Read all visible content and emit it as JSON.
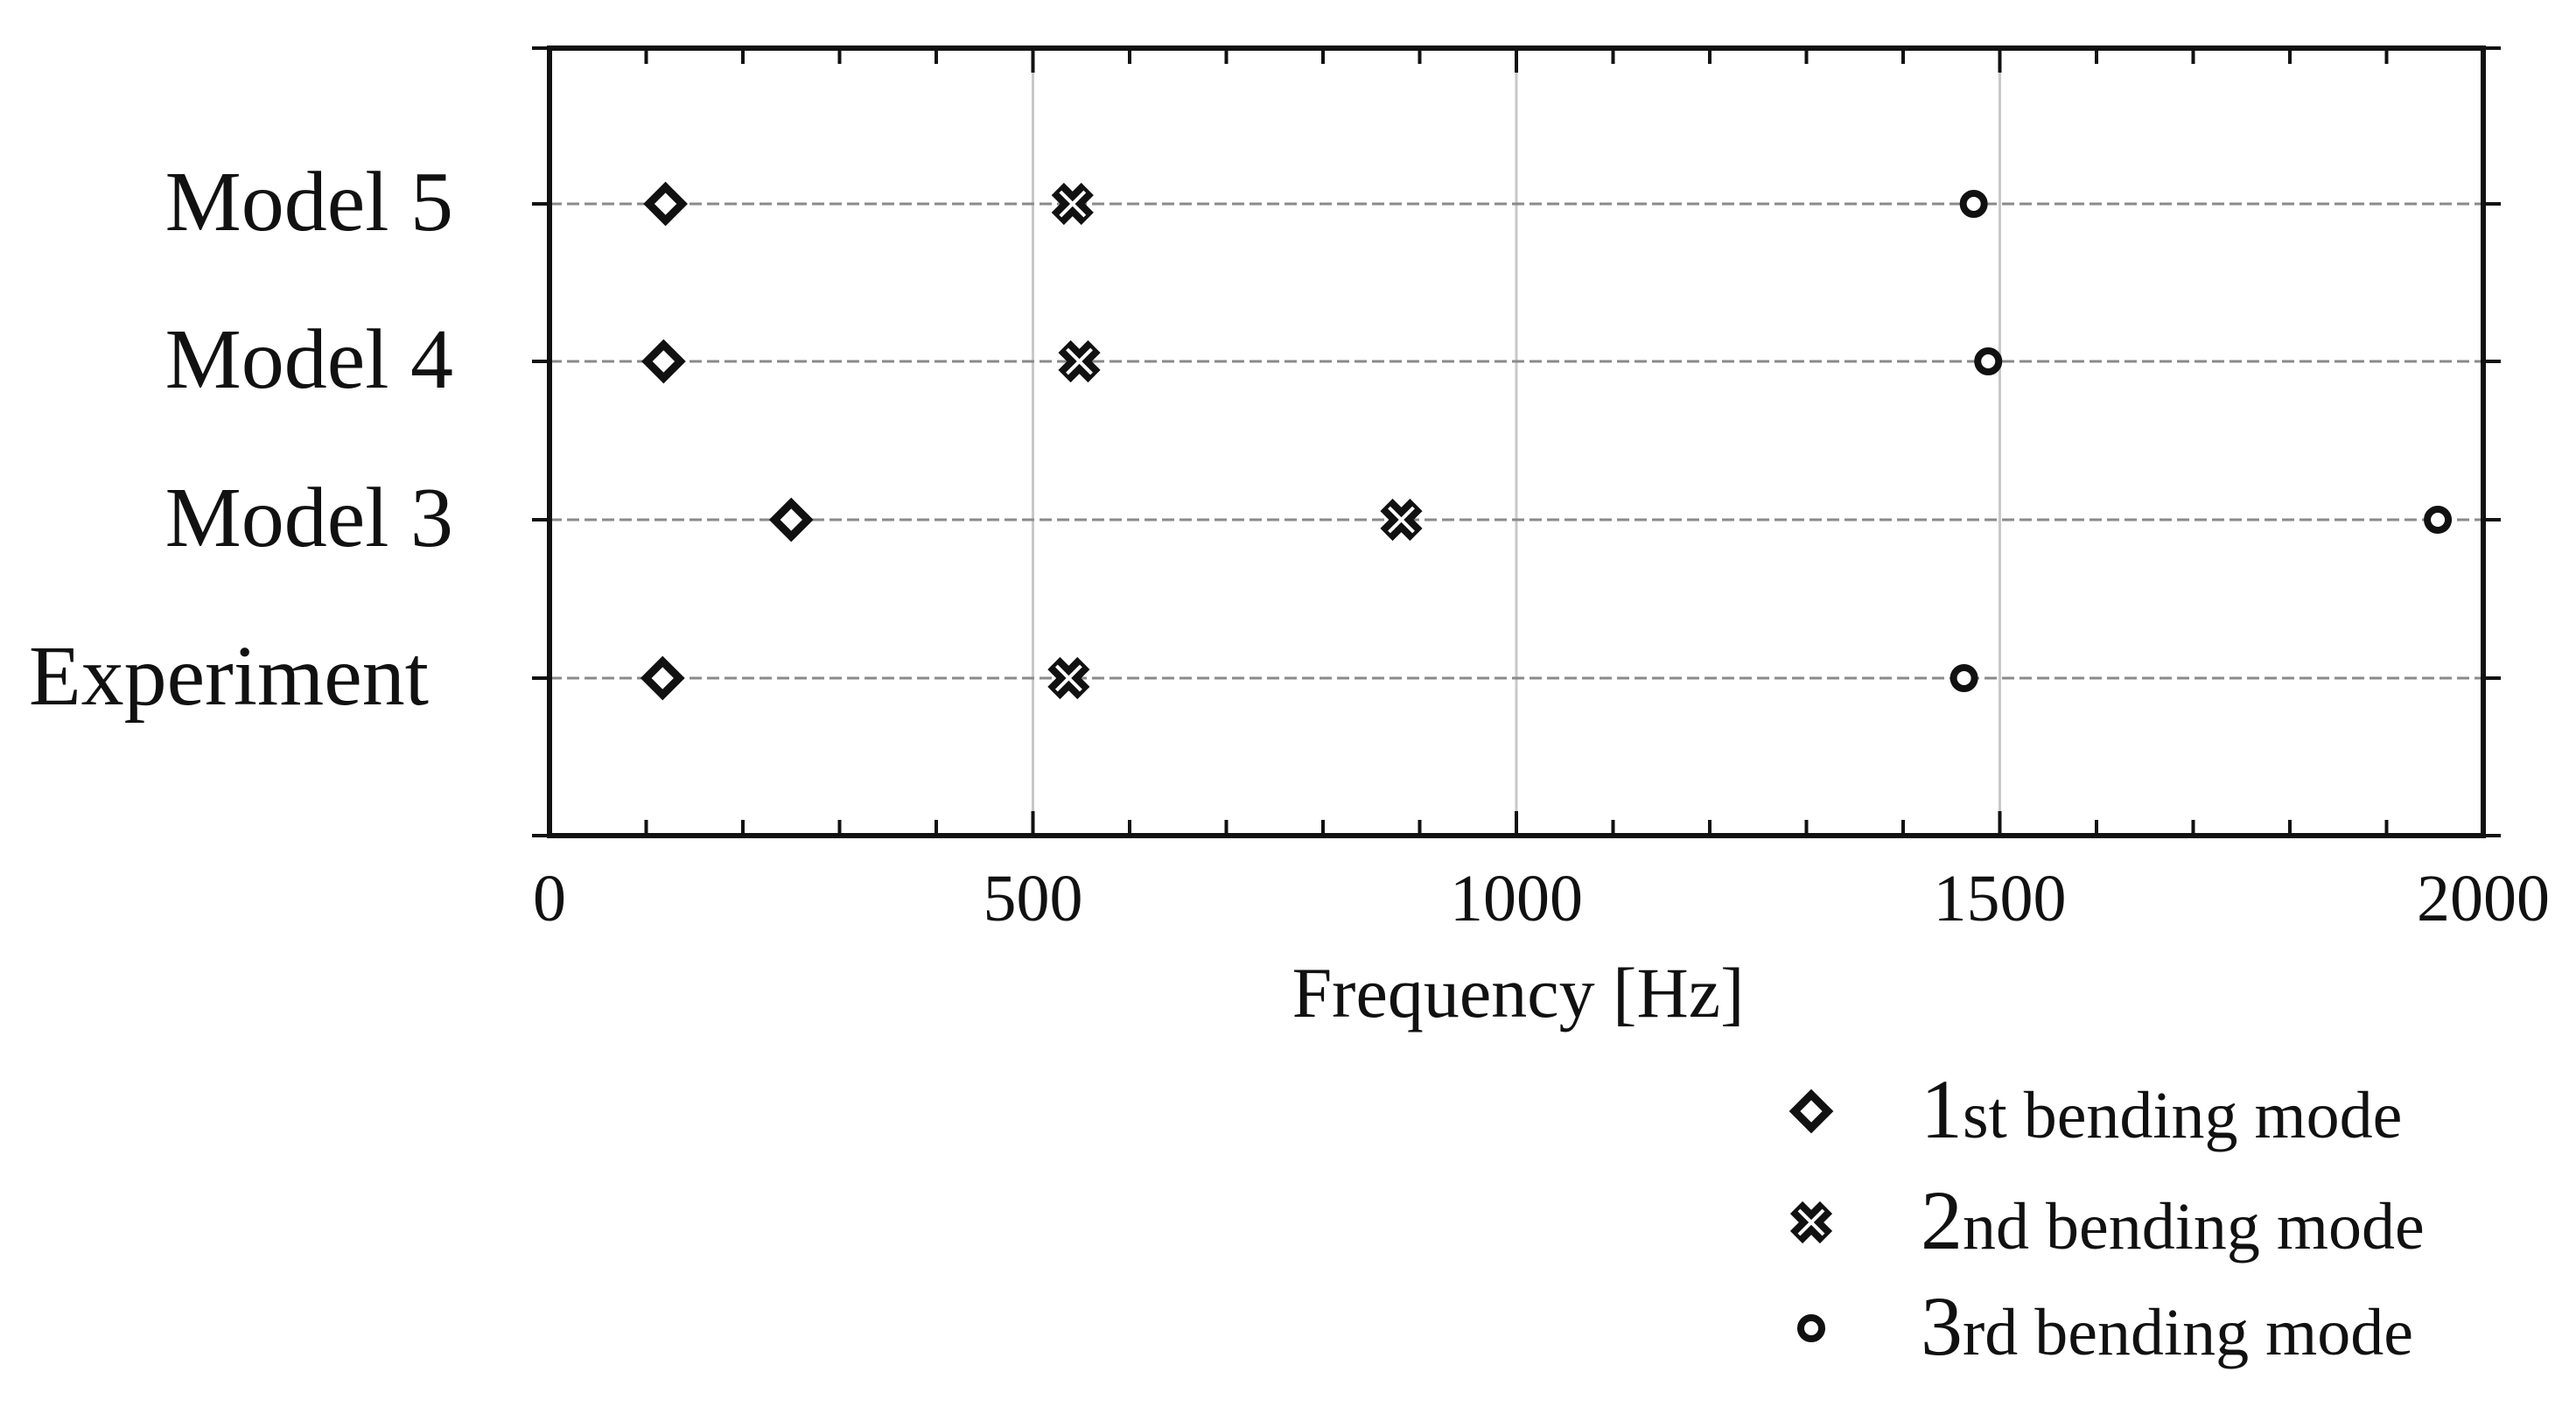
{
  "chart_data": {
    "type": "scatter",
    "title": "",
    "xlabel": "Frequency [Hz]",
    "ylabel": "",
    "xlim": [
      0,
      2000
    ],
    "x_ticks": [
      0,
      500,
      1000,
      1500,
      2000
    ],
    "x_tick_labels": [
      "0",
      "500",
      "1000",
      "1500",
      "2000"
    ],
    "x_minor_step": 100,
    "categories": [
      "Experiment",
      "Model 3",
      "Model 4",
      "Model 5"
    ],
    "grid": "vertical lines at major x ticks, dashed horizontal line per category",
    "legend_position": "bottom-right, below the plot",
    "series": [
      {
        "name": "1st bending mode",
        "ordinal": "1",
        "suffix": "st bending mode",
        "marker": "diamond",
        "points": [
          {
            "category": "Model 5",
            "x": 120
          },
          {
            "category": "Model 4",
            "x": 118
          },
          {
            "category": "Model 3",
            "x": 250
          },
          {
            "category": "Experiment",
            "x": 117
          }
        ]
      },
      {
        "name": "2nd bending mode",
        "ordinal": "2",
        "suffix": "nd bending mode",
        "marker": "x",
        "points": [
          {
            "category": "Model 5",
            "x": 541
          },
          {
            "category": "Model 4",
            "x": 548
          },
          {
            "category": "Model 3",
            "x": 881
          },
          {
            "category": "Experiment",
            "x": 537
          }
        ]
      },
      {
        "name": "3rd bending mode",
        "ordinal": "3",
        "suffix": "rd bending mode",
        "marker": "circle",
        "points": [
          {
            "category": "Model 5",
            "x": 1473
          },
          {
            "category": "Model 4",
            "x": 1488
          },
          {
            "category": "Model 3",
            "x": 1953
          },
          {
            "category": "Experiment",
            "x": 1463
          }
        ]
      }
    ],
    "colors": {
      "marker": "#111111",
      "axis": "#111111",
      "grid": "#c8c8c8",
      "category_line": "#8a8a8a"
    }
  }
}
